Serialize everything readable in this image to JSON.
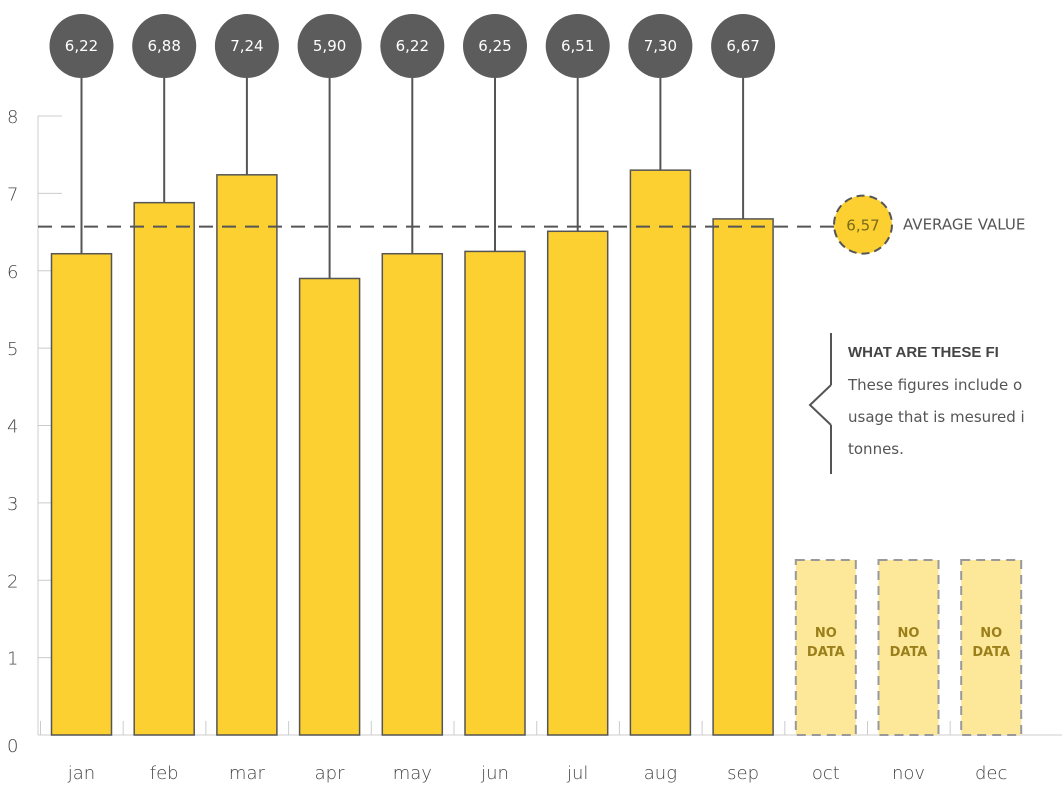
{
  "chart_data": {
    "type": "bar",
    "categories": [
      "jan",
      "feb",
      "mar",
      "apr",
      "may",
      "jun",
      "jul",
      "aug",
      "sep",
      "oct",
      "nov",
      "dec"
    ],
    "values": [
      6.22,
      6.88,
      7.24,
      5.9,
      6.22,
      6.25,
      6.51,
      7.3,
      6.67,
      null,
      null,
      null
    ],
    "value_labels": [
      "6,22",
      "6,88",
      "7,24",
      "5,90",
      "6,22",
      "6,25",
      "6,51",
      "7,30",
      "6,67",
      "",
      "",
      ""
    ],
    "no_data_label": [
      "NO",
      "DATA"
    ],
    "ylim": [
      0,
      8
    ],
    "yticks": [
      0,
      1,
      2,
      3,
      4,
      5,
      6,
      7,
      8
    ],
    "average": {
      "value": 6.57,
      "label": "6,57",
      "text": "AVERAGE VALUE"
    },
    "annotation": {
      "heading": "WHAT ARE THESE FI",
      "lines": [
        "These figures include o",
        "usage that is mesured i",
        "tonnes."
      ]
    },
    "title": "",
    "xlabel": "",
    "ylabel": "",
    "grid": false,
    "colors": {
      "bar": "#fbd030",
      "bar_stroke": "#555555",
      "no_data_fill": "#fde89a",
      "no_data_stroke": "#999999",
      "bubble": "#5c5c5c",
      "avg_line": "#555555",
      "text": "#444444"
    }
  }
}
